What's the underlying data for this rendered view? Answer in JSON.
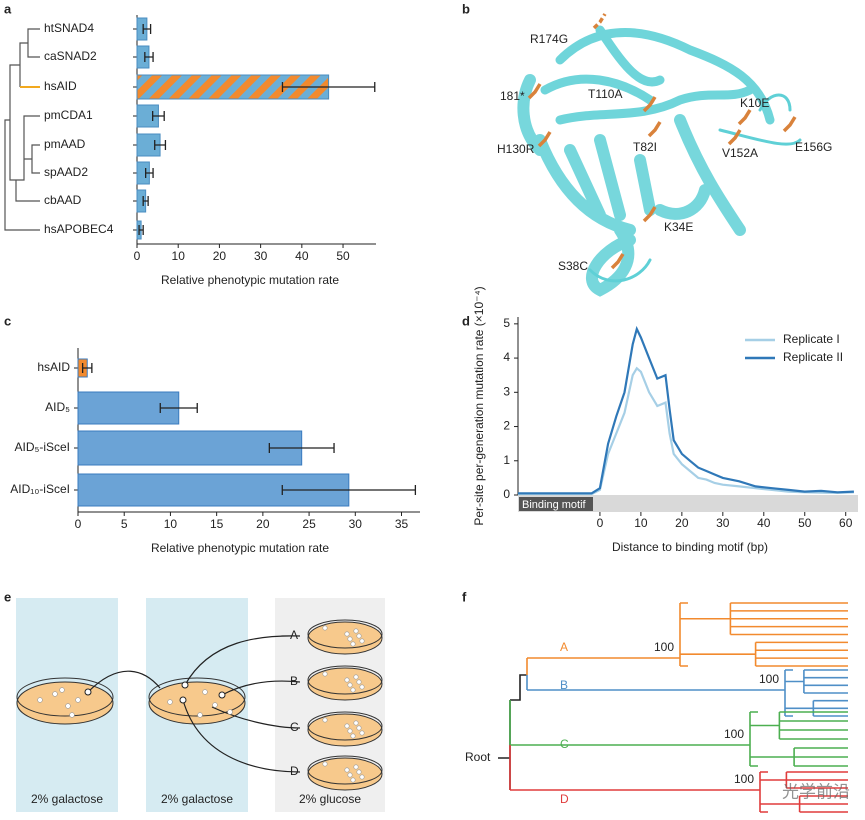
{
  "panels": [
    "a",
    "b",
    "c",
    "d",
    "e",
    "f"
  ],
  "chart_data": [
    {
      "type": "hbar",
      "categories": [
        "htSNAD4",
        "caSNAD2",
        "hsAID",
        "pmCDA1",
        "pmAAD",
        "spAAD2",
        "cbAAD",
        "hsAPOBEC4"
      ],
      "values": [
        2.4,
        2.9,
        46.5,
        5.2,
        5.6,
        3.0,
        2.1,
        1.0
      ],
      "errors": [
        0.9,
        1.0,
        11.2,
        1.4,
        1.3,
        0.9,
        0.6,
        0.5
      ],
      "colors": [
        "#6baed6",
        "#6baed6",
        "#f28a2e",
        "#6baed6",
        "#6baed6",
        "#6baed6",
        "#6baed6",
        "#6baed6"
      ],
      "hatched": [
        false,
        false,
        true,
        false,
        false,
        false,
        false,
        false
      ],
      "hatch_color": "#6baed6",
      "edge_color": "#4a8cc0",
      "xlabel": "Relative phenotypic mutation rate",
      "xlim": [
        0,
        58
      ],
      "xticks": [
        0,
        10,
        20,
        30,
        40,
        50
      ]
    },
    {
      "type": "hbar",
      "categories": [
        "hsAID",
        "AID₅",
        "AID₅-iSceI",
        "AID₁₀-iSceI"
      ],
      "values": [
        1.0,
        10.9,
        24.2,
        29.3
      ],
      "errors": [
        0.5,
        2.0,
        3.5,
        7.2
      ],
      "colors": [
        "#f28a2e",
        "#6ba3d6",
        "#6ba3d6",
        "#6ba3d6"
      ],
      "hatched": [
        false,
        false,
        false,
        false
      ],
      "hatch_color": "#6ba3d6",
      "edge_color": "#3a7bbf",
      "xlabel": "Relative phenotypic mutation rate",
      "xlim": [
        0,
        37
      ],
      "xticks": [
        0,
        5,
        10,
        15,
        20,
        25,
        30,
        35
      ]
    },
    {
      "type": "line",
      "x": [
        -20,
        -10,
        -2,
        0,
        2,
        4,
        6,
        8,
        9,
        10,
        12,
        14,
        16,
        17,
        18,
        20,
        22,
        24,
        26,
        28,
        30,
        34,
        38,
        42,
        46,
        50,
        54,
        58,
        62
      ],
      "series": [
        {
          "name": "Replicate I",
          "color": "#a6cfe6",
          "values": [
            0.03,
            0.03,
            0.03,
            0.15,
            1.2,
            1.8,
            2.4,
            3.5,
            3.7,
            3.6,
            3.0,
            2.6,
            2.7,
            1.8,
            1.2,
            0.9,
            0.7,
            0.5,
            0.45,
            0.35,
            0.3,
            0.25,
            0.2,
            0.15,
            0.1,
            0.08,
            0.07,
            0.06,
            0.08
          ]
        },
        {
          "name": "Replicate II",
          "color": "#2f78b8",
          "values": [
            0.05,
            0.05,
            0.05,
            0.2,
            1.5,
            2.3,
            3.0,
            4.4,
            4.85,
            4.6,
            4.0,
            3.4,
            3.5,
            2.5,
            1.6,
            1.2,
            1.0,
            0.8,
            0.7,
            0.6,
            0.5,
            0.4,
            0.25,
            0.2,
            0.15,
            0.1,
            0.12,
            0.08,
            0.1
          ]
        }
      ],
      "xlabel": "Distance to binding motif (bp)",
      "ylabel": "Per-site per-generation mutation rate (×10⁻⁴)",
      "annotation": "Binding motif",
      "xlim": [
        -20,
        63
      ],
      "ylim": [
        0,
        5.2
      ],
      "xticks": [
        0,
        10,
        20,
        30,
        40,
        50,
        60
      ],
      "yticks": [
        0,
        1,
        2,
        3,
        4,
        5
      ],
      "legend": "upper right"
    }
  ],
  "structure": {
    "labels": [
      "R174G",
      "181*",
      "T110A",
      "K10E",
      "H130R",
      "T82I",
      "V152A",
      "E156G",
      "K34E",
      "S38C"
    ],
    "color": "#5fd0d6",
    "residue_color": "#d9823b"
  },
  "diagram": {
    "conditions": [
      "2% galactose",
      "2% galactose",
      "2% glucose"
    ],
    "plates": [
      "A",
      "B",
      "C",
      "D"
    ]
  },
  "tree": {
    "root": "Root",
    "clades": [
      {
        "name": "A",
        "support": 100,
        "color": "#f28a2e"
      },
      {
        "name": "B",
        "support": 100,
        "color": "#4f8fc7"
      },
      {
        "name": "C",
        "support": 100,
        "color": "#4caf50"
      },
      {
        "name": "D",
        "support": 100,
        "color": "#e03c3c"
      }
    ]
  },
  "watermark": "光学前沿"
}
